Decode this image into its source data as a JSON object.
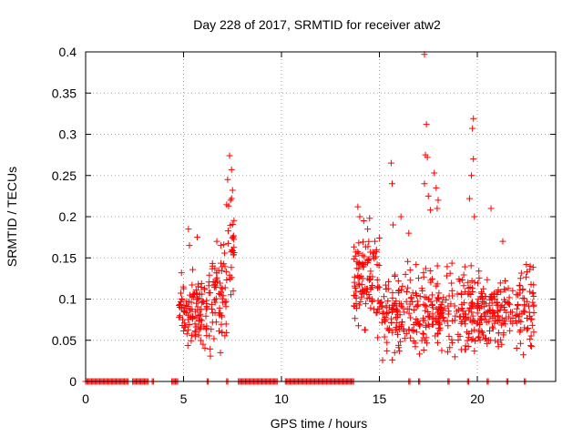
{
  "chart_data": {
    "type": "scatter",
    "title": "Day 228 of 2017, SRMTID for receiver atw2",
    "xlabel": "GPS time / hours",
    "ylabel": "SRMTID / TECUs",
    "xlim": [
      0,
      24
    ],
    "ylim": [
      0,
      0.4
    ],
    "grid": true,
    "x_ticks": [
      0,
      5,
      10,
      15,
      20
    ],
    "y_ticks": [
      0,
      0.05,
      0.1,
      0.15,
      0.2,
      0.25,
      0.3,
      0.35,
      0.4
    ],
    "x_tick_labels": [
      "0",
      "5",
      "10",
      "15",
      "20"
    ],
    "y_tick_labels": [
      "0",
      "0.05",
      "0.1",
      "0.15",
      "0.2",
      "0.25",
      "0.3",
      "0.35",
      "0.4"
    ],
    "marker": "+",
    "series": [
      {
        "name": "SRMTID",
        "color": "#ff0000",
        "zero_runs": [
          [
            0.0,
            2.2
          ],
          [
            2.4,
            3.2
          ],
          [
            3.4,
            3.5
          ],
          [
            4.4,
            4.7
          ],
          [
            6.2,
            6.3
          ],
          [
            7.2,
            7.3
          ],
          [
            7.8,
            9.8
          ],
          [
            10.2,
            13.7
          ],
          [
            16.5,
            16.6
          ],
          [
            17.0,
            17.1
          ],
          [
            18.5,
            18.6
          ],
          [
            19.5,
            19.6
          ],
          [
            20.5,
            20.6
          ],
          [
            21.5,
            21.6
          ],
          [
            22.4,
            22.5
          ]
        ],
        "clusters": [
          {
            "x": [
              4.75,
              6.2
            ],
            "base": 0.085,
            "spread": 0.04,
            "n": 110
          },
          {
            "x": [
              6.2,
              7.2
            ],
            "base": 0.1,
            "spread": 0.05,
            "n": 70
          },
          {
            "x": [
              7.2,
              7.6
            ],
            "base": 0.16,
            "spread": 0.06,
            "n": 25
          },
          {
            "x": [
              13.7,
              15.0
            ],
            "base": 0.12,
            "spread": 0.05,
            "n": 110
          },
          {
            "x": [
              15.0,
              22.9
            ],
            "base": 0.085,
            "spread": 0.045,
            "n": 520
          }
        ],
        "peaks": [
          [
            7.35,
            0.274
          ],
          [
            7.25,
            0.245
          ],
          [
            7.45,
            0.257
          ],
          [
            7.5,
            0.232
          ],
          [
            7.4,
            0.22
          ],
          [
            7.3,
            0.213
          ],
          [
            5.25,
            0.185
          ],
          [
            5.3,
            0.165
          ],
          [
            5.7,
            0.175
          ],
          [
            6.7,
            0.17
          ],
          [
            6.9,
            0.165
          ],
          [
            13.9,
            0.212
          ],
          [
            14.0,
            0.2
          ],
          [
            14.2,
            0.195
          ],
          [
            14.5,
            0.198
          ],
          [
            14.4,
            0.185
          ],
          [
            15.6,
            0.265
          ],
          [
            15.65,
            0.24
          ],
          [
            15.7,
            0.19
          ],
          [
            16.1,
            0.2
          ],
          [
            16.5,
            0.18
          ],
          [
            17.3,
            0.397
          ],
          [
            17.4,
            0.312
          ],
          [
            17.35,
            0.275
          ],
          [
            17.45,
            0.272
          ],
          [
            17.3,
            0.24
          ],
          [
            17.5,
            0.225
          ],
          [
            17.6,
            0.208
          ],
          [
            17.8,
            0.253
          ],
          [
            17.9,
            0.235
          ],
          [
            18.0,
            0.22
          ],
          [
            17.95,
            0.21
          ],
          [
            19.8,
            0.319
          ],
          [
            19.75,
            0.307
          ],
          [
            19.8,
            0.27
          ],
          [
            19.7,
            0.25
          ],
          [
            19.6,
            0.222
          ],
          [
            19.85,
            0.2
          ],
          [
            20.7,
            0.21
          ],
          [
            21.3,
            0.17
          ],
          [
            22.5,
            0.142
          ],
          [
            22.7,
            0.14
          ]
        ]
      }
    ]
  }
}
